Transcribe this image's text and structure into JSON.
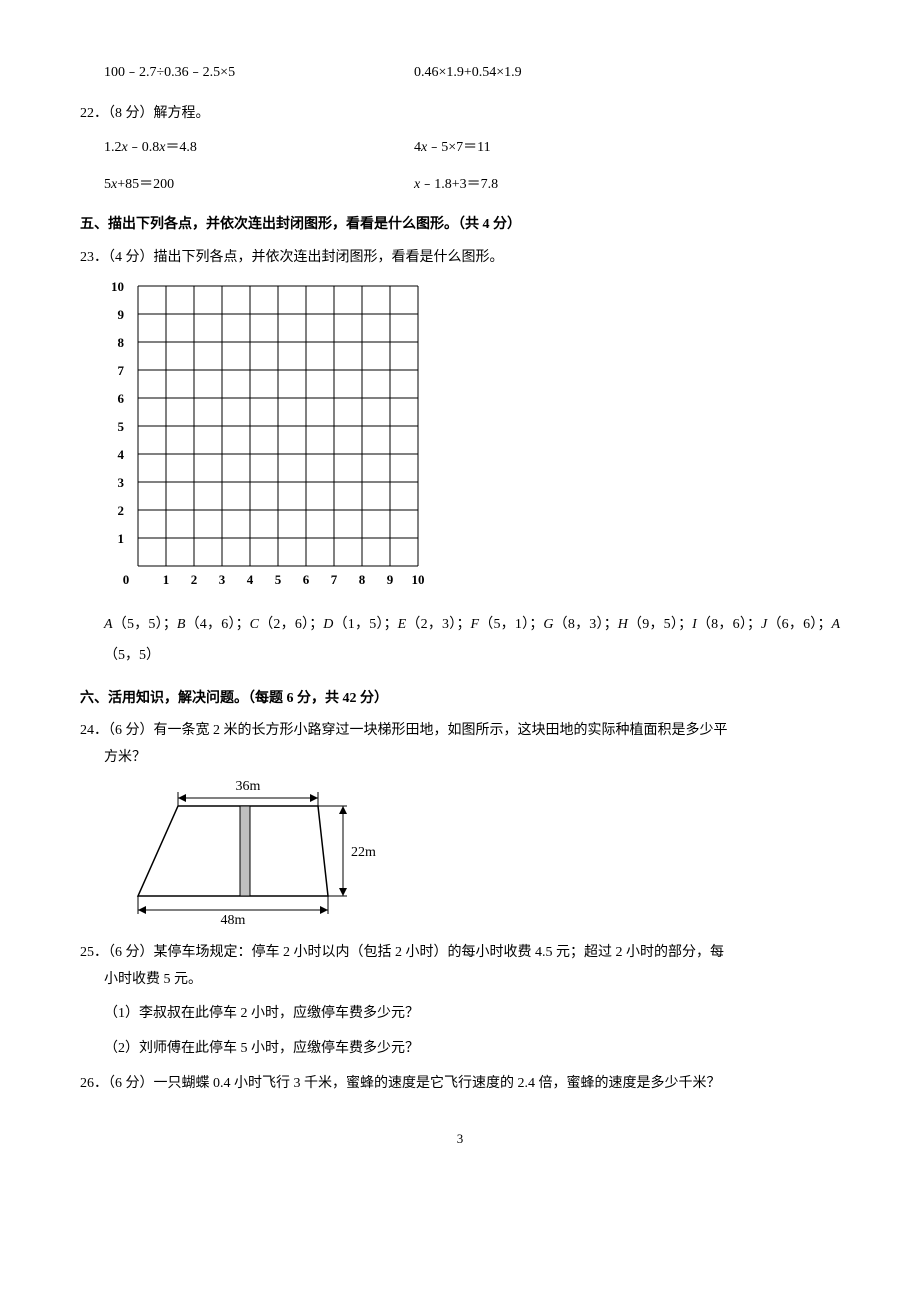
{
  "top_calc": {
    "left": "100﹣2.7÷0.36﹣2.5×5",
    "right": "0.46×1.9+0.54×1.9"
  },
  "q22": {
    "label": "22．（8 分）解方程。",
    "eq1_left_pre": "1.2",
    "eq1_left_var": "x",
    "eq1_left_mid": "﹣0.8",
    "eq1_left_var2": "x",
    "eq1_left_post": "＝4.8",
    "eq1_right_pre": "4",
    "eq1_right_var": "x",
    "eq1_right_post": "﹣5×7＝11",
    "eq2_left_pre": "5",
    "eq2_left_var": "x",
    "eq2_left_post": "+85＝200",
    "eq2_right_var": "x",
    "eq2_right_post": "﹣1.8+3＝7.8"
  },
  "section5": {
    "header": "五、描出下列各点，并依次连出封闭图形，看看是什么图形。（共 4 分）",
    "q23_label": "23．（4 分）描出下列各点，并依次连出封闭图形，看看是什么图形。"
  },
  "grid": {
    "y_labels": [
      "10",
      "9",
      "8",
      "7",
      "6",
      "5",
      "4",
      "3",
      "2",
      "1",
      "0"
    ],
    "x_labels": [
      "0",
      "1",
      "2",
      "3",
      "4",
      "5",
      "6",
      "7",
      "8",
      "9",
      "10"
    ],
    "grid_color": "#000000",
    "bg_color": "#ffffff",
    "font_size": 13,
    "font_weight": "bold",
    "axis_max": 10
  },
  "points_text": {
    "full": "A（5，5）；B（4，6）；C（2，6）；D（1，5）；E（2，3）；F（5，1）；G（8，3）；H（9，5）；I（8，6）；J（6，6）；A（5，5）"
  },
  "points_list": [
    {
      "name": "A",
      "coord": "（5，5）"
    },
    {
      "name": "B",
      "coord": "（4，6）"
    },
    {
      "name": "C",
      "coord": "（2，6）"
    },
    {
      "name": "D",
      "coord": "（1，5）"
    },
    {
      "name": "E",
      "coord": "（2，3）"
    },
    {
      "name": "F",
      "coord": "（5，1）"
    },
    {
      "name": "G",
      "coord": "（8，3）"
    },
    {
      "name": "H",
      "coord": "（9，5）"
    },
    {
      "name": "I",
      "coord": "（8，6）"
    },
    {
      "name": "J",
      "coord": "（6，6）"
    },
    {
      "name": "A",
      "coord": "（5，5）"
    }
  ],
  "section6": {
    "header": "六、活用知识，解决问题。（每题 6 分，共 42 分）"
  },
  "q24": {
    "line1": "24．（6 分）有一条宽 2 米的长方形小路穿过一块梯形田地，如图所示，这块田地的实际种植面积是多少平",
    "line2": "方米？"
  },
  "trapezoid": {
    "top_label": "36m",
    "right_label": "22m",
    "bottom_label": "48m",
    "line_color": "#000000",
    "path_fill": "#c0c0c0"
  },
  "q25": {
    "line1": "25．（6 分）某停车场规定：停车 2 小时以内（包括 2 小时）的每小时收费 4.5 元；超过 2 小时的部分，每",
    "line2": "小时收费 5 元。",
    "sub1": "（1）李叔叔在此停车 2 小时，应缴停车费多少元？",
    "sub2": "（2）刘师傅在此停车 5 小时，应缴停车费多少元？"
  },
  "q26": {
    "text": "26．（6 分）一只蝴蝶 0.4 小时飞行 3 千米，蜜蜂的速度是它飞行速度的 2.4 倍，蜜蜂的速度是多少千米？"
  },
  "page_number": "3"
}
